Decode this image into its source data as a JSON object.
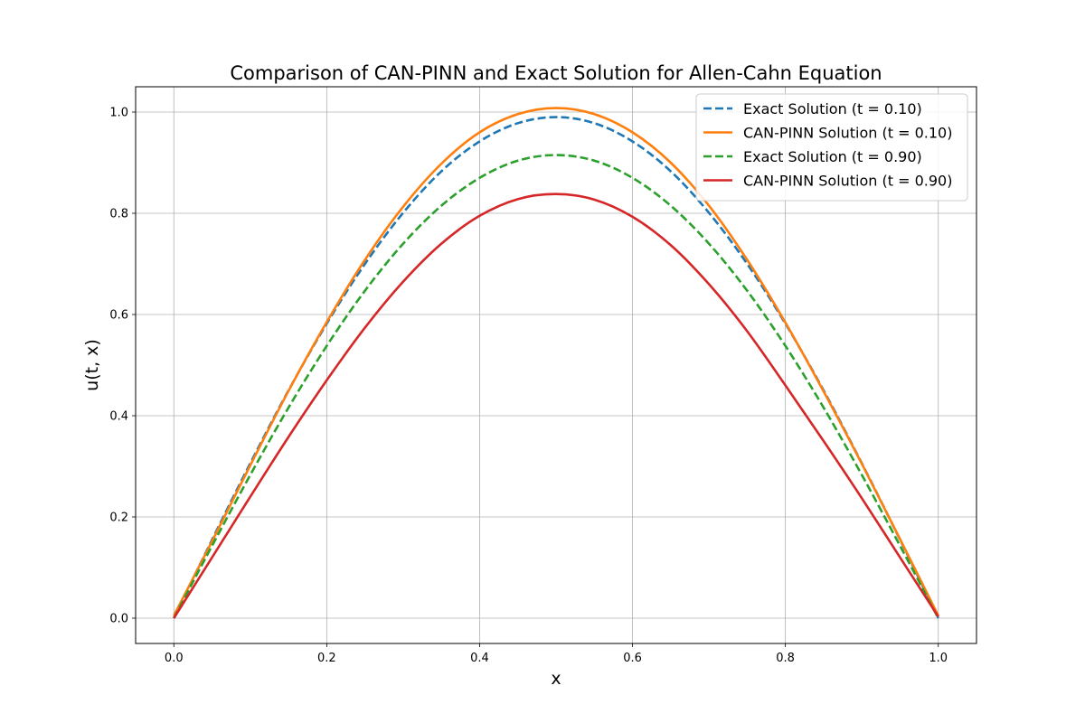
{
  "chart_data": {
    "type": "line",
    "title": "Comparison of CAN-PINN and Exact Solution for Allen-Cahn Equation",
    "xlabel": "x",
    "ylabel": "u(t, x)",
    "xlim": [
      -0.05,
      1.05
    ],
    "ylim": [
      -0.05,
      1.05
    ],
    "xticks": [
      0.0,
      0.2,
      0.4,
      0.6,
      0.8,
      1.0
    ],
    "yticks": [
      0.0,
      0.2,
      0.4,
      0.6,
      0.8,
      1.0
    ],
    "xtick_labels": [
      "0.0",
      "0.2",
      "0.4",
      "0.6",
      "0.8",
      "1.0"
    ],
    "ytick_labels": [
      "0.0",
      "0.2",
      "0.4",
      "0.6",
      "0.8",
      "1.0"
    ],
    "grid": true,
    "legend_position": "top-right",
    "x": [
      0.0,
      0.05,
      0.1,
      0.15,
      0.2,
      0.25,
      0.3,
      0.35,
      0.4,
      0.45,
      0.5,
      0.55,
      0.6,
      0.65,
      0.7,
      0.75,
      0.8,
      0.85,
      0.9,
      0.95,
      1.0
    ],
    "series": [
      {
        "name": "Exact Solution (t = 0.10)",
        "color": "#1f77b4",
        "dash": "dashed",
        "values": [
          0.0,
          0.155,
          0.306,
          0.45,
          0.582,
          0.7,
          0.801,
          0.883,
          0.942,
          0.978,
          0.99,
          0.978,
          0.942,
          0.883,
          0.801,
          0.7,
          0.582,
          0.45,
          0.306,
          0.155,
          0.0
        ]
      },
      {
        "name": "CAN-PINN Solution (t = 0.10)",
        "color": "#ff7f0e",
        "dash": "solid",
        "values": [
          0.005,
          0.152,
          0.302,
          0.449,
          0.585,
          0.708,
          0.813,
          0.898,
          0.96,
          0.996,
          1.008,
          0.996,
          0.96,
          0.9,
          0.815,
          0.708,
          0.584,
          0.448,
          0.305,
          0.156,
          0.005
        ]
      },
      {
        "name": "Exact Solution (t = 0.90)",
        "color": "#2ca02c",
        "dash": "dashed",
        "values": [
          0.0,
          0.143,
          0.283,
          0.416,
          0.538,
          0.647,
          0.74,
          0.815,
          0.87,
          0.904,
          0.915,
          0.904,
          0.87,
          0.815,
          0.74,
          0.647,
          0.538,
          0.416,
          0.283,
          0.143,
          0.0
        ]
      },
      {
        "name": "CAN-PINN Solution (t = 0.90)",
        "color": "#d62728",
        "dash": "solid",
        "values": [
          0.0,
          0.12,
          0.24,
          0.358,
          0.47,
          0.574,
          0.665,
          0.74,
          0.795,
          0.828,
          0.838,
          0.827,
          0.793,
          0.737,
          0.66,
          0.567,
          0.46,
          0.35,
          0.237,
          0.12,
          0.003
        ]
      }
    ]
  }
}
